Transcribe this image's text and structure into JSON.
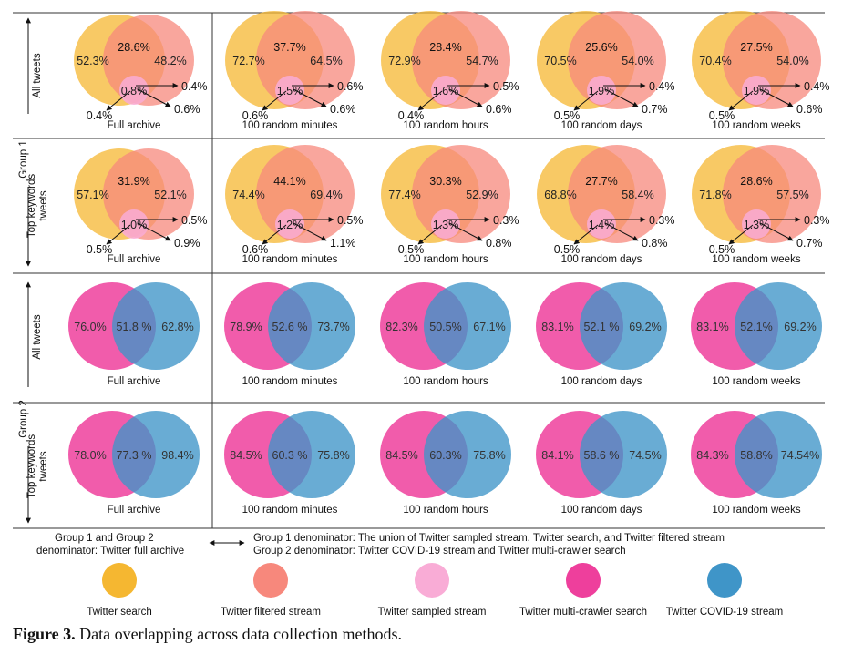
{
  "colors": {
    "twitter_search": "#f5b731",
    "filtered_stream": "#f7887c",
    "sampled_stream": "#f9acd6",
    "multi_crawler": "#ee3f9c",
    "covid_stream": "#3f95c8"
  },
  "row_labels": {
    "group1": "Group 1",
    "group2": "Group 2",
    "all_tweets": "All tweets",
    "top_keywords_1": "Top keywords",
    "top_keywords_2": "tweets"
  },
  "group1": {
    "rows": [
      {
        "cells": [
          {
            "title": "Full archive",
            "a": "52.3%",
            "ab": "28.6%",
            "b": "48.2%",
            "c": "0.8%",
            "bc": "0.4%",
            "abc": "0.6%",
            "ac": "0.4%"
          },
          {
            "title": "100 random minutes",
            "a": "72.7%",
            "ab": "37.7%",
            "b": "64.5%",
            "c": "1.5%",
            "bc": "0.6%",
            "abc": "0.6%",
            "ac": "0.6%"
          },
          {
            "title": "100 random hours",
            "a": "72.9%",
            "ab": "28.4%",
            "b": "54.7%",
            "c": "1.6%",
            "bc": "0.5%",
            "abc": "0.6%",
            "ac": "0.4%"
          },
          {
            "title": "100 random days",
            "a": "70.5%",
            "ab": "25.6%",
            "b": "54.0%",
            "c": "1.9%",
            "bc": "0.4%",
            "abc": "0.7%",
            "ac": "0.5%"
          },
          {
            "title": "100 random weeks",
            "a": "70.4%",
            "ab": "27.5%",
            "b": "54.0%",
            "c": "1.9%",
            "bc": "0.4%",
            "abc": "0.6%",
            "ac": "0.5%"
          }
        ]
      },
      {
        "cells": [
          {
            "title": "Full archive",
            "a": "57.1%",
            "ab": "31.9%",
            "b": "52.1%",
            "c": "1.0%",
            "bc": "0.5%",
            "abc": "0.9%",
            "ac": "0.5%"
          },
          {
            "title": "100 random minutes",
            "a": "74.4%",
            "ab": "44.1%",
            "b": "69.4%",
            "c": "1.2%",
            "bc": "0.5%",
            "abc": "1.1%",
            "ac": "0.6%"
          },
          {
            "title": "100 random hours",
            "a": "77.4%",
            "ab": "30.3%",
            "b": "52.9%",
            "c": "1.3%",
            "bc": "0.3%",
            "abc": "0.8%",
            "ac": "0.5%"
          },
          {
            "title": "100 random days",
            "a": "68.8%",
            "ab": "27.7%",
            "b": "58.4%",
            "c": "1.4%",
            "bc": "0.3%",
            "abc": "0.8%",
            "ac": "0.5%"
          },
          {
            "title": "100 random weeks",
            "a": "71.8%",
            "ab": "28.6%",
            "b": "57.5%",
            "c": "1.3%",
            "bc": "0.3%",
            "abc": "0.7%",
            "ac": "0.5%"
          }
        ]
      }
    ]
  },
  "group2": {
    "rows": [
      {
        "cells": [
          {
            "title": "Full archive",
            "a": "76.0%",
            "ab": "51.8 %",
            "b": "62.8%"
          },
          {
            "title": "100 random minutes",
            "a": "78.9%",
            "ab": "52.6 %",
            "b": "73.7%"
          },
          {
            "title": "100 random hours",
            "a": "82.3%",
            "ab": "50.5%",
            "b": "67.1%"
          },
          {
            "title": "100 random days",
            "a": "83.1%",
            "ab": "52.1 %",
            "b": "69.2%"
          },
          {
            "title": "100 random weeks",
            "a": "83.1%",
            "ab": "52.1%",
            "b": "69.2%"
          }
        ]
      },
      {
        "cells": [
          {
            "title": "Full archive",
            "a": "78.0%",
            "ab": "77.3 %",
            "b": "98.4%"
          },
          {
            "title": "100 random minutes",
            "a": "84.5%",
            "ab": "60.3 %",
            "b": "75.8%"
          },
          {
            "title": "100 random hours",
            "a": "84.5%",
            "ab": "60.3%",
            "b": "75.8%"
          },
          {
            "title": "100 random days",
            "a": "84.1%",
            "ab": "58.6 %",
            "b": "74.5%"
          },
          {
            "title": "100 random weeks",
            "a": "84.3%",
            "ab": "58.8%",
            "b": "74.54%"
          }
        ]
      }
    ]
  },
  "notes": {
    "left_1": "Group 1 and Group 2",
    "left_2": "denominator: Twitter full archive",
    "right_1": "Group 1 denominator: The union of Twitter sampled stream. Twitter search, and Twitter filtered stream",
    "right_2": "Group 2 denominator: Twitter COVID-19 stream and Twitter multi-crawler search"
  },
  "legend": [
    {
      "label": "Twitter search",
      "color": "#f5b731"
    },
    {
      "label": "Twitter filtered stream",
      "color": "#f7887c"
    },
    {
      "label": "Twitter sampled stream",
      "color": "#f9acd6"
    },
    {
      "label": "Twitter multi-crawler search",
      "color": "#ee3f9c"
    },
    {
      "label": "Twitter COVID-19 stream",
      "color": "#3f95c8"
    }
  ],
  "caption": {
    "label": "Figure 3.",
    "text": " Data overlapping across data collection methods."
  }
}
